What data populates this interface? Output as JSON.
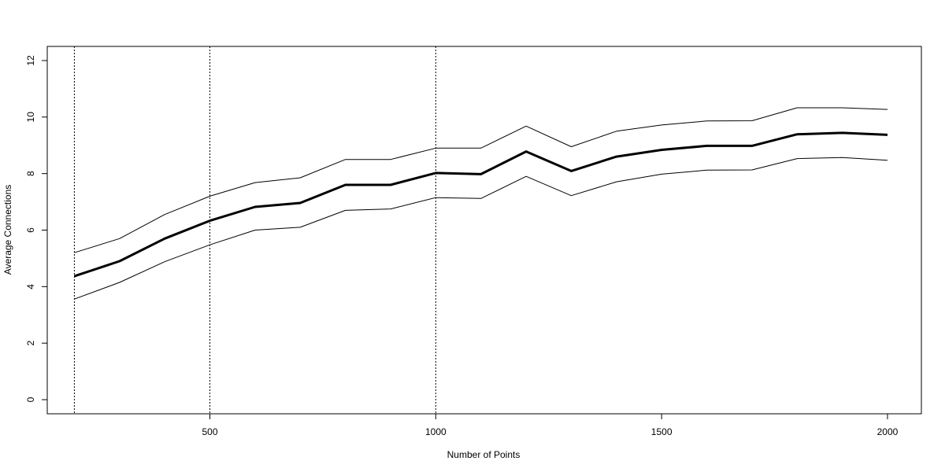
{
  "chart_data": {
    "type": "line",
    "title": "",
    "xlabel": "Number of Points",
    "ylabel": "Average Connections",
    "xlim": [
      140,
      2075
    ],
    "ylim": [
      -0.5,
      12.5
    ],
    "x_ticks": [
      500,
      1000,
      1500,
      2000
    ],
    "y_ticks": [
      0,
      2,
      4,
      6,
      8,
      10,
      12
    ],
    "grid": false,
    "legend": "none",
    "x": [
      200,
      300,
      400,
      500,
      600,
      700,
      800,
      900,
      1000,
      1100,
      1200,
      1300,
      1400,
      1500,
      1600,
      1700,
      1800,
      1900,
      2000
    ],
    "series": [
      {
        "role": "upper",
        "color": "#000000",
        "values": [
          5.2,
          5.7,
          6.55,
          7.2,
          7.68,
          7.85,
          8.5,
          8.5,
          8.9,
          8.9,
          9.68,
          8.95,
          9.5,
          9.72,
          9.86,
          9.87,
          10.33,
          10.33,
          10.27
        ]
      },
      {
        "role": "mean",
        "color": "#000000",
        "values": [
          4.37,
          4.9,
          5.7,
          6.33,
          6.82,
          6.96,
          7.6,
          7.6,
          8.02,
          7.98,
          8.78,
          8.09,
          8.6,
          8.84,
          8.98,
          8.98,
          9.39,
          9.44,
          9.37
        ]
      },
      {
        "role": "lower",
        "color": "#000000",
        "values": [
          3.56,
          4.15,
          4.88,
          5.48,
          6.0,
          6.1,
          6.7,
          6.75,
          7.15,
          7.12,
          7.9,
          7.22,
          7.71,
          7.98,
          8.12,
          8.13,
          8.53,
          8.57,
          8.47
        ]
      }
    ],
    "vertical_reference_lines": [
      200,
      500,
      1000
    ]
  }
}
